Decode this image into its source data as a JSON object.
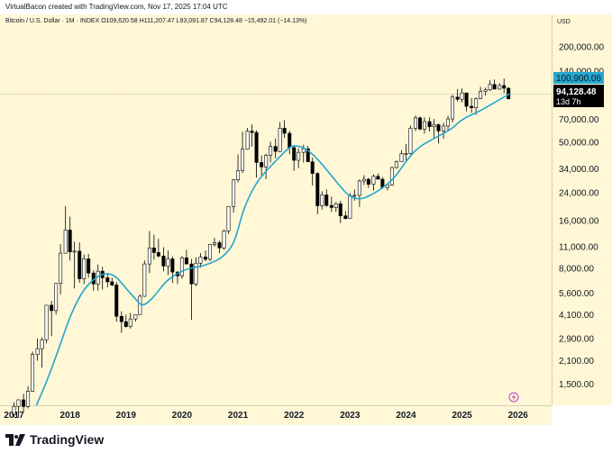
{
  "byline": "VirtualBacon created with TradingView.com, Nov 17, 2025 17:04 UTC",
  "legend": {
    "symbol": "Bitcoin / U.S. Dollar · 1M · INDEX",
    "open": "O109,620.58",
    "high": "H111,207.47",
    "low": "L93,091.87",
    "close": "C94,128.48",
    "change": "−15,492.01 (−14.13%)"
  },
  "currency": "USD",
  "price_badges": {
    "ma_value": "100,900.06",
    "last_price": "94,128.48",
    "countdown": "13d 7h"
  },
  "brand": "TradingView",
  "colors": {
    "background": "#fff7d6",
    "candle_up": "#ffffff",
    "candle_down": "#000000",
    "ma_line": "#22a7d0",
    "ma_badge": "#22a7d0",
    "price_badge": "#000000"
  },
  "chart_data": {
    "type": "candlestick",
    "scale": "log",
    "y_ticks": [
      1500,
      2100,
      2900,
      4100,
      5600,
      8000,
      11000,
      16000,
      24000,
      34000,
      50000,
      70000,
      140000,
      200000
    ],
    "y_tick_labels": [
      "1,500.00",
      "2,100.00",
      "2,900.00",
      "4,100.00",
      "5,600.00",
      "8,000.00",
      "11,000.00",
      "16,000.00",
      "24,000.00",
      "34,000.00",
      "50,000.00",
      "70,000.00",
      "140,000.00",
      "200,000.00"
    ],
    "ylim": [
      1100,
      320000
    ],
    "x_ticks": [
      "2017",
      "2018",
      "2019",
      "2020",
      "2021",
      "2022",
      "2023",
      "2024",
      "2025",
      "2026"
    ],
    "x_start_year": 2016.75,
    "x_end_year": 2026.6,
    "ma_line": [
      [
        2017.4,
        1100
      ],
      [
        2017.6,
        1600
      ],
      [
        2017.8,
        2500
      ],
      [
        2018.0,
        4000
      ],
      [
        2018.2,
        5600
      ],
      [
        2018.4,
        6800
      ],
      [
        2018.6,
        7500
      ],
      [
        2018.8,
        7300
      ],
      [
        2019.0,
        6000
      ],
      [
        2019.2,
        5000
      ],
      [
        2019.3,
        4600
      ],
      [
        2019.5,
        5300
      ],
      [
        2019.7,
        6600
      ],
      [
        2019.9,
        7400
      ],
      [
        2020.1,
        8000
      ],
      [
        2020.3,
        8200
      ],
      [
        2020.5,
        8600
      ],
      [
        2020.7,
        9300
      ],
      [
        2020.9,
        11000
      ],
      [
        2021.0,
        14000
      ],
      [
        2021.1,
        19000
      ],
      [
        2021.3,
        27000
      ],
      [
        2021.5,
        33000
      ],
      [
        2021.7,
        39000
      ],
      [
        2021.9,
        46000
      ],
      [
        2022.0,
        48000
      ],
      [
        2022.2,
        46000
      ],
      [
        2022.4,
        40000
      ],
      [
        2022.6,
        33000
      ],
      [
        2022.8,
        27000
      ],
      [
        2023.0,
        22500
      ],
      [
        2023.2,
        21800
      ],
      [
        2023.4,
        23500
      ],
      [
        2023.6,
        26000
      ],
      [
        2023.8,
        30000
      ],
      [
        2024.0,
        38000
      ],
      [
        2024.2,
        46000
      ],
      [
        2024.5,
        53000
      ],
      [
        2024.8,
        60000
      ],
      [
        2025.0,
        70000
      ],
      [
        2025.3,
        78000
      ],
      [
        2025.6,
        90000
      ],
      [
        2025.85,
        101000
      ]
    ],
    "candles": [
      [
        2017.0,
        960,
        1150,
        920,
        1080
      ],
      [
        2017.08,
        1080,
        1200,
        930,
        1190
      ],
      [
        2017.17,
        1190,
        1300,
        1000,
        1080
      ],
      [
        2017.25,
        1080,
        1450,
        1050,
        1350
      ],
      [
        2017.33,
        1350,
        2400,
        1340,
        2300
      ],
      [
        2017.42,
        2300,
        2900,
        2100,
        2500
      ],
      [
        2017.5,
        2500,
        2950,
        1900,
        2850
      ],
      [
        2017.58,
        2850,
        4700,
        2700,
        4700
      ],
      [
        2017.67,
        4700,
        5000,
        3000,
        4350
      ],
      [
        2017.75,
        4350,
        6400,
        4100,
        6450
      ],
      [
        2017.83,
        6450,
        11400,
        5500,
        10000
      ],
      [
        2017.92,
        10000,
        19800,
        10000,
        14000
      ],
      [
        2018.0,
        14000,
        17000,
        9000,
        10200
      ],
      [
        2018.08,
        10200,
        11800,
        6000,
        10300
      ],
      [
        2018.17,
        10300,
        11700,
        6500,
        6900
      ],
      [
        2018.25,
        6900,
        9800,
        6400,
        9200
      ],
      [
        2018.33,
        9200,
        9900,
        7000,
        7500
      ],
      [
        2018.42,
        7500,
        7800,
        5800,
        6400
      ],
      [
        2018.5,
        6400,
        8500,
        5800,
        7700
      ],
      [
        2018.58,
        7700,
        8200,
        5900,
        7000
      ],
      [
        2018.67,
        7000,
        7400,
        6100,
        6600
      ],
      [
        2018.75,
        6600,
        7000,
        6200,
        6300
      ],
      [
        2018.83,
        6300,
        6600,
        3700,
        4000
      ],
      [
        2018.92,
        4000,
        4300,
        3150,
        3700
      ],
      [
        2019.0,
        3700,
        4100,
        3400,
        3450
      ],
      [
        2019.08,
        3450,
        4200,
        3350,
        3850
      ],
      [
        2019.17,
        3850,
        4100,
        3700,
        4100
      ],
      [
        2019.25,
        4100,
        5500,
        4100,
        5350
      ],
      [
        2019.33,
        5350,
        9000,
        5300,
        8550
      ],
      [
        2019.42,
        8550,
        13800,
        7500,
        10800
      ],
      [
        2019.5,
        10800,
        13100,
        9100,
        10100
      ],
      [
        2019.58,
        10100,
        12300,
        9400,
        9600
      ],
      [
        2019.67,
        9600,
        10900,
        7700,
        8300
      ],
      [
        2019.75,
        8300,
        10400,
        7300,
        9200
      ],
      [
        2019.83,
        9200,
        9500,
        6500,
        7600
      ],
      [
        2019.92,
        7600,
        7700,
        6400,
        7200
      ],
      [
        2020.0,
        7200,
        9600,
        6900,
        9350
      ],
      [
        2020.08,
        9350,
        10500,
        8500,
        8550
      ],
      [
        2020.17,
        8550,
        9200,
        3800,
        6400
      ],
      [
        2020.25,
        6400,
        9400,
        6200,
        8650
      ],
      [
        2020.33,
        8650,
        10000,
        8100,
        9450
      ],
      [
        2020.42,
        9450,
        10400,
        8900,
        9150
      ],
      [
        2020.5,
        9150,
        11400,
        8900,
        11350
      ],
      [
        2020.58,
        11350,
        12500,
        11000,
        11650
      ],
      [
        2020.67,
        11650,
        12000,
        10000,
        10800
      ],
      [
        2020.75,
        10800,
        14100,
        10500,
        13800
      ],
      [
        2020.83,
        13800,
        19800,
        13200,
        19700
      ],
      [
        2020.92,
        19700,
        29300,
        18000,
        29000
      ],
      [
        2021.0,
        29000,
        41900,
        28000,
        33100
      ],
      [
        2021.08,
        33100,
        58300,
        32000,
        45200
      ],
      [
        2021.17,
        45200,
        61700,
        44900,
        58800
      ],
      [
        2021.25,
        58800,
        64800,
        47000,
        57700
      ],
      [
        2021.33,
        57700,
        59500,
        30000,
        37300
      ],
      [
        2021.42,
        37300,
        41300,
        31000,
        35000
      ],
      [
        2021.5,
        35000,
        42400,
        29300,
        41500
      ],
      [
        2021.58,
        41500,
        50500,
        37300,
        47100
      ],
      [
        2021.67,
        47100,
        52900,
        39600,
        43800
      ],
      [
        2021.75,
        43800,
        67000,
        43300,
        61300
      ],
      [
        2021.83,
        61300,
        69000,
        53300,
        57000
      ],
      [
        2021.92,
        57000,
        59000,
        42000,
        46300
      ],
      [
        2022.0,
        46300,
        47900,
        33000,
        38500
      ],
      [
        2022.08,
        38500,
        45800,
        34300,
        43200
      ],
      [
        2022.17,
        43200,
        48200,
        37200,
        45500
      ],
      [
        2022.25,
        45500,
        47400,
        37600,
        37700
      ],
      [
        2022.33,
        37700,
        40000,
        26700,
        31800
      ],
      [
        2022.42,
        31800,
        32400,
        17600,
        19900
      ],
      [
        2022.5,
        19900,
        24600,
        18800,
        23300
      ],
      [
        2022.58,
        23300,
        25200,
        19600,
        20000
      ],
      [
        2022.67,
        20000,
        22700,
        18200,
        19400
      ],
      [
        2022.75,
        19400,
        21000,
        18200,
        20500
      ],
      [
        2022.83,
        20500,
        21400,
        15500,
        17200
      ],
      [
        2022.92,
        17200,
        18400,
        16300,
        16550
      ],
      [
        2023.0,
        16550,
        23900,
        16500,
        23100
      ],
      [
        2023.08,
        23100,
        25200,
        21400,
        23150
      ],
      [
        2023.17,
        23150,
        29200,
        19600,
        28500
      ],
      [
        2023.25,
        28500,
        31000,
        26900,
        29250
      ],
      [
        2023.33,
        29250,
        29800,
        25800,
        27200
      ],
      [
        2023.42,
        27200,
        31400,
        24800,
        30500
      ],
      [
        2023.5,
        30500,
        31800,
        29500,
        29250
      ],
      [
        2023.58,
        29250,
        30200,
        25400,
        25950
      ],
      [
        2023.67,
        25950,
        27400,
        24900,
        26950
      ],
      [
        2023.75,
        26950,
        35200,
        26600,
        34650
      ],
      [
        2023.83,
        34650,
        38400,
        34100,
        37700
      ],
      [
        2023.92,
        37700,
        44700,
        37600,
        42300
      ],
      [
        2024.0,
        42300,
        48900,
        38500,
        42600
      ],
      [
        2024.08,
        42600,
        63900,
        41900,
        61300
      ],
      [
        2024.17,
        61300,
        73800,
        59000,
        71300
      ],
      [
        2024.25,
        71300,
        72700,
        59700,
        60600
      ],
      [
        2024.33,
        60600,
        71900,
        56600,
        67500
      ],
      [
        2024.42,
        67500,
        71900,
        58400,
        62700
      ],
      [
        2024.5,
        62700,
        70000,
        53500,
        64600
      ],
      [
        2024.58,
        64600,
        65600,
        49000,
        58900
      ],
      [
        2024.67,
        58900,
        66400,
        52600,
        63300
      ],
      [
        2024.75,
        63300,
        73600,
        58900,
        70200
      ],
      [
        2024.83,
        70200,
        99600,
        66800,
        96400
      ],
      [
        2024.92,
        96400,
        108300,
        90500,
        93400
      ],
      [
        2025.0,
        93400,
        109300,
        89200,
        102400
      ],
      [
        2025.08,
        102400,
        102700,
        78200,
        84300
      ],
      [
        2025.17,
        84300,
        95000,
        76600,
        82500
      ],
      [
        2025.25,
        82500,
        95800,
        74400,
        94200
      ],
      [
        2025.33,
        94200,
        111900,
        93400,
        104600
      ],
      [
        2025.42,
        104600,
        110600,
        98200,
        107100
      ],
      [
        2025.5,
        107100,
        123100,
        105200,
        115700
      ],
      [
        2025.58,
        115700,
        124400,
        108000,
        108200
      ],
      [
        2025.67,
        108200,
        117900,
        107300,
        114000
      ],
      [
        2025.75,
        114000,
        126200,
        102000,
        109600
      ],
      [
        2025.83,
        109600,
        111200,
        93100,
        94100
      ]
    ]
  }
}
